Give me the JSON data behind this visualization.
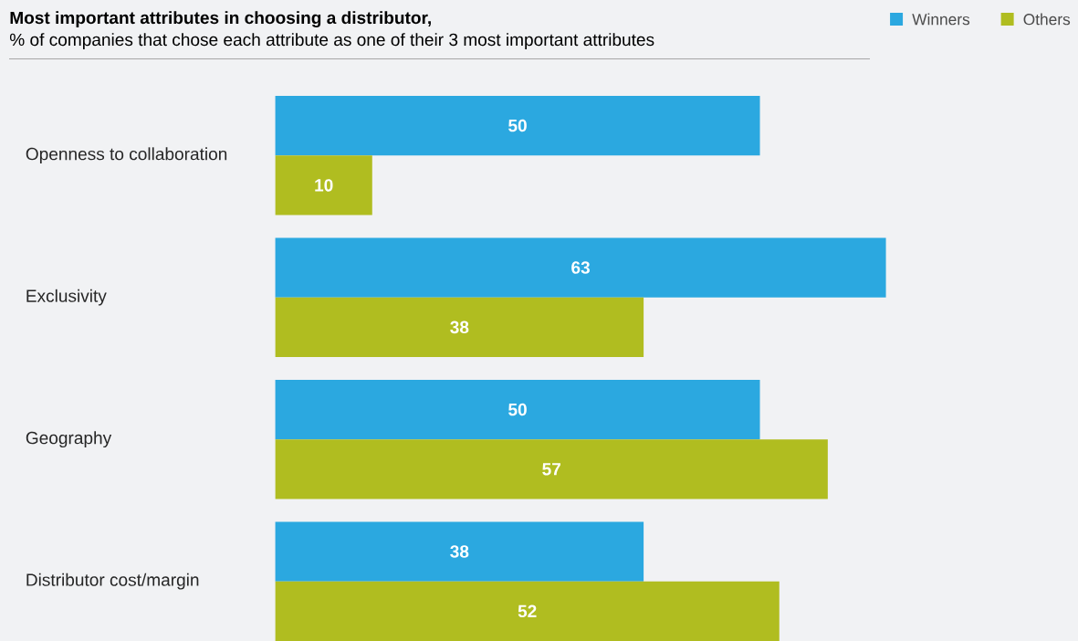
{
  "chart_data": {
    "type": "bar",
    "orientation": "horizontal",
    "title": "Most important attributes in choosing a distributor,",
    "subtitle": "% of companies that chose each attribute as one of their 3 most important attributes",
    "categories": [
      "Openness to collaboration",
      "Exclusivity",
      "Geography",
      "Distributor cost/margin"
    ],
    "series": [
      {
        "name": "Winners",
        "color": "#2ba8e0",
        "values": [
          50,
          63,
          50,
          38
        ]
      },
      {
        "name": "Others",
        "color": "#b0bd20",
        "values": [
          10,
          38,
          57,
          52
        ]
      }
    ],
    "data_labels": true,
    "legend": "top right"
  }
}
